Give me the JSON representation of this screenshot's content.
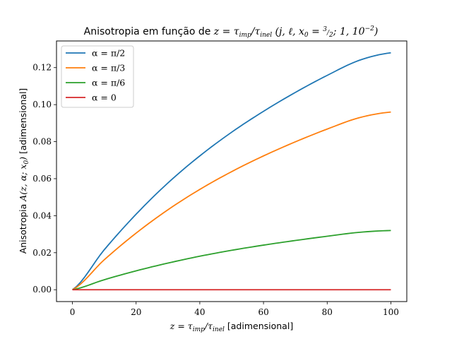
{
  "chart_data": {
    "type": "line",
    "title": {
      "prefix": "Anisotropia em função de ",
      "math": "z = τ_imp/τ_inel (j, ℓ, x₀ = 3/2; 1, 10⁻²)",
      "math_main": "z = τ",
      "sub1": "imp",
      "slash": "/τ",
      "sub2": "inel",
      "params": " (j, ℓ, x",
      "params_sub": "0",
      "params_rest": " = ",
      "frac_num": "3",
      "frac_den": "2",
      "params_end": "; 1, 10",
      "exp": "−2",
      "close": ")"
    },
    "xlabel": {
      "math_main": "z = τ",
      "sub1": "imp",
      "slash": "/τ",
      "sub2": "inel",
      "text": " [adimensional]"
    },
    "ylabel": {
      "prefix": "Anisotropia ",
      "math": "A(z, α; x",
      "sub": "0",
      "math_end": ")",
      "text": " [adimensional]"
    },
    "xlim": [
      -5,
      105
    ],
    "ylim": [
      -0.0064,
      0.1344
    ],
    "xticks": [
      0,
      20,
      40,
      60,
      80,
      100
    ],
    "xtick_labels": [
      "0",
      "20",
      "40",
      "60",
      "80",
      "100"
    ],
    "yticks": [
      0.0,
      0.02,
      0.04,
      0.06,
      0.08,
      0.1,
      0.12
    ],
    "ytick_labels": [
      "0.00",
      "0.02",
      "0.04",
      "0.06",
      "0.08",
      "0.10",
      "0.12"
    ],
    "legend_position": "top-left",
    "grid": false,
    "x": [
      0,
      10,
      20,
      30,
      40,
      50,
      60,
      70,
      80,
      90,
      100
    ],
    "series": [
      {
        "name": "α = π/2",
        "color": "#1f77b4",
        "values": [
          0.0,
          0.0216,
          0.0408,
          0.0577,
          0.0723,
          0.0851,
          0.0964,
          0.1066,
          0.1158,
          0.1239,
          0.128
        ]
      },
      {
        "name": "α = π/3",
        "color": "#ff7f0e",
        "values": [
          0.0,
          0.0162,
          0.0306,
          0.0432,
          0.0542,
          0.0638,
          0.0723,
          0.0799,
          0.0868,
          0.0929,
          0.096
        ]
      },
      {
        "name": "α = π/6",
        "color": "#2ca02c",
        "values": [
          0.0,
          0.0054,
          0.0102,
          0.0144,
          0.0181,
          0.0213,
          0.0241,
          0.0266,
          0.0289,
          0.031,
          0.032
        ]
      },
      {
        "name": "α = 0",
        "color": "#d62728",
        "values": [
          0.0,
          0.0,
          0.0,
          0.0,
          0.0,
          0.0,
          0.0,
          0.0,
          0.0,
          0.0,
          0.0
        ]
      }
    ]
  }
}
